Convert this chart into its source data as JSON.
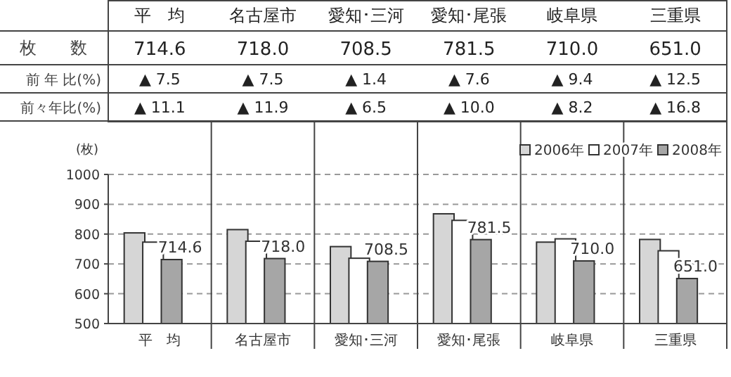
{
  "chart_data": {
    "type": "bar",
    "ylabel": "(枚)",
    "categories": [
      "平　均",
      "名古屋市",
      "愛知･三河",
      "愛知･尾張",
      "岐阜県",
      "三重県"
    ],
    "series": [
      {
        "name": "2006年",
        "color": "#d6d6d6",
        "values": [
          804,
          815,
          758,
          868,
          773,
          782
        ]
      },
      {
        "name": "2007年",
        "color": "#ffffff",
        "values": [
          773,
          776,
          719,
          846,
          784,
          744
        ]
      },
      {
        "name": "2008年",
        "color": "#a6a6a6",
        "values": [
          714.6,
          718.0,
          708.5,
          781.5,
          710.0,
          651.0
        ],
        "value_labels": [
          "714.6",
          "718.0",
          "708.5",
          "781.5",
          "710.0",
          "651.0"
        ]
      }
    ],
    "ylim": [
      500,
      1000
    ],
    "yticks": [
      500,
      600,
      700,
      800,
      900,
      1000
    ],
    "grid": "y",
    "legend": "top right",
    "annotations": [
      "枚　　数",
      "前 年 比(%)",
      "前々年比(%)",
      "▲ 7.5",
      "▲ 7.5",
      "▲ 1.4",
      "▲ 7.6",
      "▲ 9.4",
      "▲ 12.5",
      "▲ 11.1",
      "▲ 11.9",
      "▲ 6.5",
      "▲ 10.0",
      "▲ 8.2",
      "▲ 16.8"
    ]
  }
}
